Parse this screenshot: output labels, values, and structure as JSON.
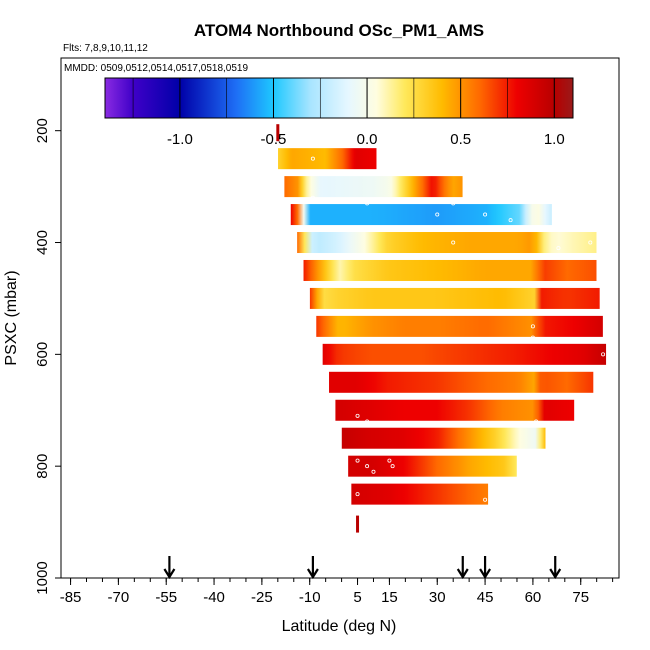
{
  "chart_data": {
    "type": "heatmap",
    "title": "ATOM4 Northbound OSc_PM1_AMS",
    "flights_note": "Flts: 7,8,9,10,11,12",
    "dates_note": "MMDD: 0509,0512,0514,0517,0518,0519",
    "xlabel": "Latitude (deg N)",
    "ylabel": "PSXC (mbar)",
    "xlim": [
      -88,
      87
    ],
    "ylim": [
      1000,
      70
    ],
    "x_ticks": [
      -85,
      -70,
      -55,
      -40,
      -25,
      -10,
      5,
      15,
      30,
      45,
      60,
      75
    ],
    "x_tick_labels": [
      "-85",
      "-70",
      "-55",
      "-40",
      "-25",
      "-10",
      "5",
      "15",
      "30",
      "45",
      "60",
      "75"
    ],
    "x_minor_step": 5,
    "y_ticks": [
      200,
      400,
      600,
      800,
      1000
    ],
    "y_tick_labels": [
      "200",
      "400",
      "600",
      "800",
      "1000"
    ],
    "colorbar": {
      "range": [
        -1.4,
        1.1
      ],
      "ticks": [
        -1.0,
        -0.5,
        0.0,
        0.5,
        1.0
      ],
      "tick_labels": [
        "-1.0",
        "-0.5",
        "0.0",
        "0.5",
        "1.0"
      ],
      "color_stops": [
        {
          "v": -1.4,
          "c": "#8a2be2"
        },
        {
          "v": -1.25,
          "c": "#3f00c8"
        },
        {
          "v": -1.0,
          "c": "#0000a8"
        },
        {
          "v": -0.7,
          "c": "#1e6ef5"
        },
        {
          "v": -0.5,
          "c": "#1ec8ff"
        },
        {
          "v": -0.3,
          "c": "#a9e5ff"
        },
        {
          "v": -0.1,
          "c": "#e6f7ff"
        },
        {
          "v": 0.05,
          "c": "#fffde0"
        },
        {
          "v": 0.2,
          "c": "#ffe95c"
        },
        {
          "v": 0.4,
          "c": "#ffbb00"
        },
        {
          "v": 0.6,
          "c": "#ff6a00"
        },
        {
          "v": 0.8,
          "c": "#ee0000"
        },
        {
          "v": 1.0,
          "c": "#b80000"
        },
        {
          "v": 1.1,
          "c": "#9a1a1a"
        }
      ]
    },
    "profile_latitudes": [
      -54,
      -9,
      38,
      45,
      67
    ],
    "bands": [
      {
        "p": 200,
        "lat0": -20,
        "lat1": -20,
        "stops": [
          [
            -20,
            1.0
          ]
        ]
      },
      {
        "p": 250,
        "lat0": -19,
        "lat1": 10,
        "stops": [
          [
            -19,
            0.3
          ],
          [
            -15,
            0.45
          ],
          [
            -5,
            0.4
          ],
          [
            0,
            0.6
          ],
          [
            4,
            0.85
          ],
          [
            10,
            0.8
          ]
        ]
      },
      {
        "p": 300,
        "lat0": -17,
        "lat1": 37,
        "stops": [
          [
            -17,
            0.6
          ],
          [
            -13,
            0.5
          ],
          [
            -10,
            0.1
          ],
          [
            -6,
            -0.1
          ],
          [
            10,
            -0.05
          ],
          [
            15,
            0.0
          ],
          [
            20,
            0.3
          ],
          [
            25,
            0.6
          ],
          [
            28,
            0.8
          ],
          [
            31,
            0.6
          ],
          [
            34,
            0.45
          ],
          [
            37,
            0.5
          ]
        ]
      },
      {
        "p": 350,
        "lat0": -15,
        "lat1": 65,
        "stops": [
          [
            -15,
            0.8
          ],
          [
            -12,
            0.5
          ],
          [
            -10,
            -0.55
          ],
          [
            10,
            -0.55
          ],
          [
            30,
            -0.6
          ],
          [
            45,
            -0.55
          ],
          [
            55,
            -0.4
          ],
          [
            60,
            0.1
          ],
          [
            63,
            -0.1
          ],
          [
            65,
            -0.2
          ]
        ]
      },
      {
        "p": 400,
        "lat0": -13,
        "lat1": 79,
        "stops": [
          [
            -13,
            0.6
          ],
          [
            -8,
            -0.25
          ],
          [
            0,
            -0.15
          ],
          [
            8,
            0.05
          ],
          [
            15,
            0.3
          ],
          [
            25,
            0.4
          ],
          [
            40,
            0.45
          ],
          [
            55,
            0.45
          ],
          [
            60,
            0.5
          ],
          [
            62,
            0.2
          ],
          [
            66,
            0.05
          ],
          [
            72,
            0.1
          ],
          [
            79,
            0.15
          ]
        ]
      },
      {
        "p": 450,
        "lat0": -11,
        "lat1": 79,
        "stops": [
          [
            -11,
            0.75
          ],
          [
            -5,
            0.4
          ],
          [
            0,
            0.1
          ],
          [
            5,
            0.25
          ],
          [
            15,
            0.35
          ],
          [
            30,
            0.4
          ],
          [
            45,
            0.45
          ],
          [
            60,
            0.45
          ],
          [
            62,
            0.7
          ],
          [
            70,
            0.6
          ],
          [
            79,
            0.65
          ]
        ]
      },
      {
        "p": 500,
        "lat0": -9,
        "lat1": 80,
        "stops": [
          [
            -9,
            0.7
          ],
          [
            -5,
            0.25
          ],
          [
            0,
            0.3
          ],
          [
            10,
            0.35
          ],
          [
            30,
            0.35
          ],
          [
            50,
            0.4
          ],
          [
            60,
            0.3
          ],
          [
            62,
            0.75
          ],
          [
            70,
            0.7
          ],
          [
            80,
            0.75
          ]
        ]
      },
      {
        "p": 550,
        "lat0": -7,
        "lat1": 81,
        "stops": [
          [
            -7,
            0.7
          ],
          [
            0,
            0.4
          ],
          [
            10,
            0.5
          ],
          [
            20,
            0.55
          ],
          [
            30,
            0.55
          ],
          [
            45,
            0.6
          ],
          [
            60,
            0.5
          ],
          [
            62,
            0.75
          ],
          [
            72,
            0.8
          ],
          [
            81,
            0.9
          ]
        ]
      },
      {
        "p": 600,
        "lat0": -5,
        "lat1": 82,
        "stops": [
          [
            -5,
            0.85
          ],
          [
            0,
            0.7
          ],
          [
            10,
            0.65
          ],
          [
            25,
            0.65
          ],
          [
            40,
            0.7
          ],
          [
            55,
            0.75
          ],
          [
            65,
            0.8
          ],
          [
            75,
            0.85
          ],
          [
            82,
            0.95
          ]
        ]
      },
      {
        "p": 650,
        "lat0": -3,
        "lat1": 78,
        "stops": [
          [
            -3,
            0.85
          ],
          [
            5,
            0.85
          ],
          [
            15,
            0.75
          ],
          [
            30,
            0.7
          ],
          [
            45,
            0.6
          ],
          [
            55,
            0.55
          ],
          [
            60,
            0.45
          ],
          [
            62,
            0.65
          ],
          [
            70,
            0.6
          ],
          [
            78,
            0.7
          ]
        ]
      },
      {
        "p": 700,
        "lat0": -1,
        "lat1": 72,
        "stops": [
          [
            -1,
            0.9
          ],
          [
            10,
            0.85
          ],
          [
            20,
            0.8
          ],
          [
            30,
            0.8
          ],
          [
            40,
            0.7
          ],
          [
            50,
            0.55
          ],
          [
            60,
            0.5
          ],
          [
            63,
            0.85
          ],
          [
            72,
            0.8
          ]
        ]
      },
      {
        "p": 750,
        "lat0": 1,
        "lat1": 63,
        "stops": [
          [
            1,
            0.95
          ],
          [
            8,
            0.9
          ],
          [
            20,
            0.85
          ],
          [
            30,
            0.75
          ],
          [
            40,
            0.5
          ],
          [
            48,
            0.3
          ],
          [
            55,
            0.05
          ],
          [
            60,
            -0.05
          ],
          [
            63,
            0.4
          ]
        ]
      },
      {
        "p": 800,
        "lat0": 3,
        "lat1": 54,
        "stops": [
          [
            3,
            0.9
          ],
          [
            10,
            0.9
          ],
          [
            20,
            0.8
          ],
          [
            30,
            0.6
          ],
          [
            40,
            0.45
          ],
          [
            50,
            0.35
          ],
          [
            54,
            0.2
          ]
        ]
      },
      {
        "p": 850,
        "lat0": 4,
        "lat1": 45,
        "stops": [
          [
            4,
            0.9
          ],
          [
            15,
            0.85
          ],
          [
            25,
            0.75
          ],
          [
            35,
            0.65
          ],
          [
            45,
            0.55
          ]
        ]
      },
      {
        "p": 900,
        "lat0": 5,
        "lat1": 5,
        "stops": [
          [
            5,
            1.0
          ]
        ]
      }
    ],
    "sample_points": [
      [
        -9,
        250
      ],
      [
        -9,
        320
      ],
      [
        8,
        330
      ],
      [
        30,
        350
      ],
      [
        35,
        330
      ],
      [
        45,
        350
      ],
      [
        53,
        360
      ],
      [
        35,
        400
      ],
      [
        68,
        410
      ],
      [
        78,
        400
      ],
      [
        60,
        550
      ],
      [
        60,
        570
      ],
      [
        82,
        600
      ],
      [
        61,
        720
      ],
      [
        5,
        710
      ],
      [
        8,
        720
      ],
      [
        5,
        790
      ],
      [
        8,
        800
      ],
      [
        15,
        790
      ],
      [
        16,
        800
      ],
      [
        10,
        810
      ],
      [
        5,
        850
      ],
      [
        45,
        860
      ]
    ]
  }
}
